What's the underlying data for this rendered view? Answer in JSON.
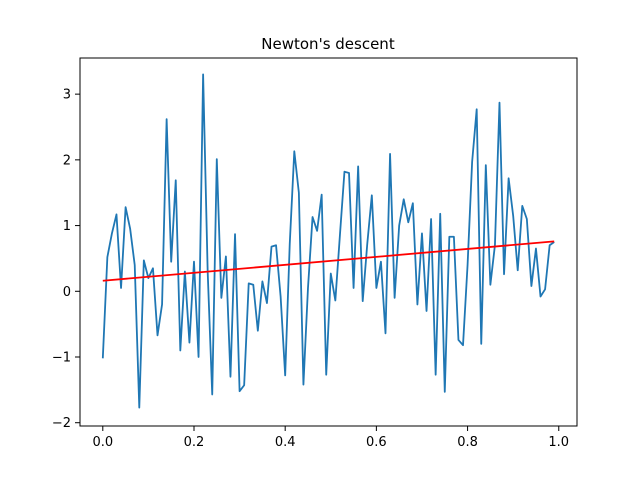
{
  "chart_data": {
    "type": "line",
    "title": "Newton's descent",
    "xlabel": "",
    "ylabel": "",
    "xlim": [
      -0.05,
      1.04
    ],
    "ylim": [
      -2.05,
      3.55
    ],
    "grid": false,
    "xticks": [
      0.0,
      0.2,
      0.4,
      0.6,
      0.8,
      1.0
    ],
    "xtick_labels": [
      "0.0",
      "0.2",
      "0.4",
      "0.6",
      "0.8",
      "1.0"
    ],
    "yticks": [
      -2,
      -1,
      0,
      1,
      2,
      3
    ],
    "ytick_labels": [
      "−2",
      "−1",
      "0",
      "1",
      "2",
      "3"
    ],
    "series": [
      {
        "color": "#1f77b4",
        "x": [
          0.0,
          0.01,
          0.02,
          0.03,
          0.04,
          0.05,
          0.06,
          0.07,
          0.08,
          0.09,
          0.1,
          0.11,
          0.12,
          0.13,
          0.14,
          0.15,
          0.16,
          0.17,
          0.18,
          0.19,
          0.2,
          0.21,
          0.22,
          0.23,
          0.24,
          0.25,
          0.26,
          0.27,
          0.28,
          0.29,
          0.3,
          0.31,
          0.32,
          0.33,
          0.34,
          0.35,
          0.36,
          0.37,
          0.38,
          0.39,
          0.4,
          0.41,
          0.42,
          0.43,
          0.44,
          0.45,
          0.46,
          0.47,
          0.48,
          0.49,
          0.5,
          0.51,
          0.52,
          0.53,
          0.54,
          0.55,
          0.56,
          0.57,
          0.58,
          0.59,
          0.6,
          0.61,
          0.62,
          0.63,
          0.64,
          0.65,
          0.66,
          0.67,
          0.68,
          0.69,
          0.7,
          0.71,
          0.72,
          0.73,
          0.74,
          0.75,
          0.76,
          0.77,
          0.78,
          0.79,
          0.8,
          0.81,
          0.82,
          0.83,
          0.84,
          0.85,
          0.86,
          0.87,
          0.88,
          0.89,
          0.9,
          0.91,
          0.92,
          0.93,
          0.94,
          0.95,
          0.96,
          0.97,
          0.98,
          0.99
        ],
        "y": [
          -1.02,
          0.52,
          0.88,
          1.17,
          0.05,
          1.28,
          0.95,
          0.4,
          -1.77,
          0.47,
          0.2,
          0.35,
          -0.67,
          -0.2,
          2.62,
          0.45,
          1.69,
          -0.9,
          0.3,
          -0.78,
          0.45,
          -1.0,
          3.3,
          0.3,
          -1.57,
          2.01,
          -0.1,
          0.53,
          -1.3,
          0.87,
          -1.52,
          -1.43,
          0.12,
          0.1,
          -0.6,
          0.15,
          -0.18,
          0.68,
          0.7,
          -0.08,
          -1.28,
          0.72,
          2.13,
          1.5,
          -1.42,
          0.05,
          1.13,
          0.92,
          1.47,
          -1.27,
          0.27,
          -0.14,
          0.85,
          1.82,
          1.8,
          0.05,
          1.9,
          -0.15,
          0.72,
          1.46,
          0.05,
          0.45,
          -0.64,
          2.09,
          -0.1,
          1.0,
          1.4,
          1.05,
          1.34,
          -0.2,
          0.88,
          -0.3,
          1.1,
          -1.27,
          1.18,
          -1.53,
          0.83,
          0.83,
          -0.74,
          -0.82,
          0.4,
          1.97,
          2.77,
          -0.8,
          1.92,
          0.1,
          0.7,
          2.87,
          0.26,
          1.72,
          1.15,
          0.32,
          1.3,
          1.1,
          0.08,
          0.65,
          -0.08,
          0.03,
          0.7,
          0.75
        ]
      },
      {
        "color": "#ff0000",
        "x": [
          0.0,
          0.99
        ],
        "y": [
          0.16,
          0.76
        ]
      }
    ]
  }
}
